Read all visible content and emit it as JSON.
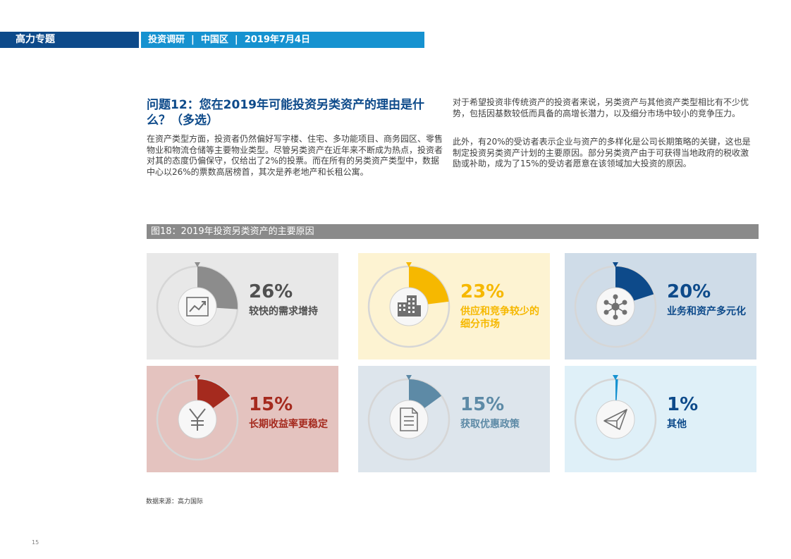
{
  "header": {
    "left_label": "高力专题",
    "right_label": "投资调研  |  中国区  |  2019年7月4日"
  },
  "question": {
    "title": "问题12：您在2019年可能投资另类资产的理由是什么？（多选）",
    "para1": "在资产类型方面，投资者仍然偏好写字楼、住宅、多功能项目、商务园区、零售物业和物流仓储等主要物业类型。尽管另类资产在近年来不断成为热点，投资者对其的态度仍偏保守，仅给出了2%的投票。而在所有的另类资产类型中，数据中心以26%的票数高居榜首，其次是养老地产和长租公寓。",
    "para2": "对于希望投资非传统资产的投资者来说，另类资产与其他资产类型相比有不少优势，包括因基数较低而具备的高增长潜力，以及细分市场中较小的竞争压力。",
    "para3": "此外，有20%的受访者表示企业与资产的多样化是公司长期策略的关键，这也是制定投资另类资产计划的主要原因。部分另类资产由于可获得当地政府的税收激励或补助，成为了15%的受访者愿意在该领域加大投资的原因。"
  },
  "figure": {
    "title": "图18：2019年投资另类资产的主要原因"
  },
  "chart_data": {
    "type": "pie",
    "categories": [
      "较快的需求增持",
      "供应和竞争较少的细分市场",
      "业务和资产多元化",
      "长期收益率更稳定",
      "获取优惠政策",
      "其他"
    ],
    "values": [
      26,
      23,
      20,
      15,
      15,
      1
    ],
    "items": [
      {
        "pct": "26%",
        "label": "较快的需求增持",
        "value": 26,
        "color": "#8c8c8c",
        "bg": "#e8e8e8",
        "icon": "chart-trend-icon",
        "labelColor": "#505050"
      },
      {
        "pct": "23%",
        "label": "供应和竞争较少的细分市场",
        "value": 23,
        "color": "#f6b800",
        "bg": "#fdf3d2",
        "icon": "buildings-icon",
        "labelColor": "#f6b800"
      },
      {
        "pct": "20%",
        "label": "业务和资产多元化",
        "value": 20,
        "color": "#0d4a8a",
        "bg": "#cfdce8",
        "icon": "network-icon",
        "labelColor": "#0d4a8a"
      },
      {
        "pct": "15%",
        "label": "长期收益率更稳定",
        "value": 15,
        "color": "#a52a1e",
        "bg": "#e4c3bf",
        "icon": "yen-icon",
        "labelColor": "#a52a1e"
      },
      {
        "pct": "15%",
        "label": "获取优惠政策",
        "value": 15,
        "color": "#5d8aa6",
        "bg": "#dde5ec",
        "icon": "document-icon",
        "labelColor": "#5d8aa6"
      },
      {
        "pct": "1%",
        "label": "其他",
        "value": 1,
        "color": "#1692d0",
        "bg": "#dff0f8",
        "icon": "paper-plane-icon",
        "labelColor": "#0d4a8a"
      }
    ]
  },
  "footer": {
    "source": "数据来源：高力国际",
    "page_number": "15"
  }
}
